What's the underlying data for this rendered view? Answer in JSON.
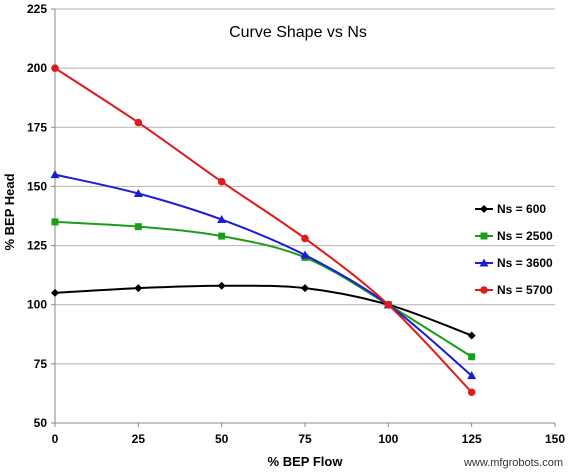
{
  "chart_data": {
    "type": "line",
    "title": "Curve Shape vs Ns",
    "xlabel": "% BEP Flow",
    "ylabel": "% BEP Head",
    "xlim": [
      0,
      150
    ],
    "ylim": [
      50,
      225
    ],
    "x_ticks": [
      "0",
      "25",
      "50",
      "75",
      "100",
      "125",
      "150"
    ],
    "y_ticks": [
      "50",
      "75",
      "100",
      "125",
      "150",
      "175",
      "200",
      "225"
    ],
    "grid": "horizontal",
    "legend_position": "right",
    "series": [
      {
        "name": "Ns = 600",
        "color": "#000000",
        "marker": "diamond",
        "points": [
          [
            0,
            105
          ],
          [
            25,
            107
          ],
          [
            50,
            108
          ],
          [
            75,
            107
          ],
          [
            100,
            100
          ],
          [
            125,
            87
          ]
        ]
      },
      {
        "name": "Ns = 2500",
        "color": "#1a9e1a",
        "marker": "square",
        "points": [
          [
            0,
            135
          ],
          [
            25,
            133
          ],
          [
            50,
            129
          ],
          [
            75,
            120
          ],
          [
            100,
            100
          ],
          [
            125,
            78
          ]
        ]
      },
      {
        "name": "Ns = 3600",
        "color": "#1c1cd6",
        "marker": "triangle",
        "points": [
          [
            0,
            155
          ],
          [
            25,
            147
          ],
          [
            50,
            136
          ],
          [
            75,
            121
          ],
          [
            100,
            100
          ],
          [
            125,
            70
          ]
        ]
      },
      {
        "name": "Ns = 5700",
        "color": "#e01a1a",
        "marker": "circle",
        "points": [
          [
            0,
            200
          ],
          [
            25,
            177
          ],
          [
            50,
            152
          ],
          [
            75,
            128
          ],
          [
            100,
            100
          ],
          [
            125,
            63
          ]
        ]
      }
    ]
  },
  "watermark": "www.mfgrobots.com"
}
